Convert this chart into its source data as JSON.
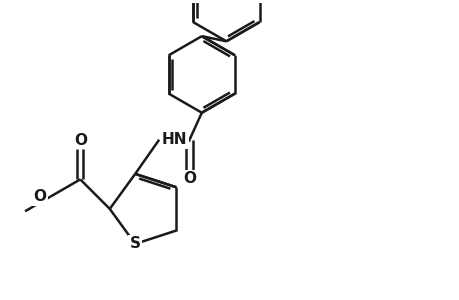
{
  "background_color": "#ffffff",
  "line_color": "#1a1a1a",
  "line_width": 1.8,
  "font_size": 11,
  "figsize": [
    4.6,
    3.0
  ],
  "dpi": 100,
  "xlim": [
    0,
    9.2
  ],
  "ylim": [
    0,
    6.0
  ]
}
